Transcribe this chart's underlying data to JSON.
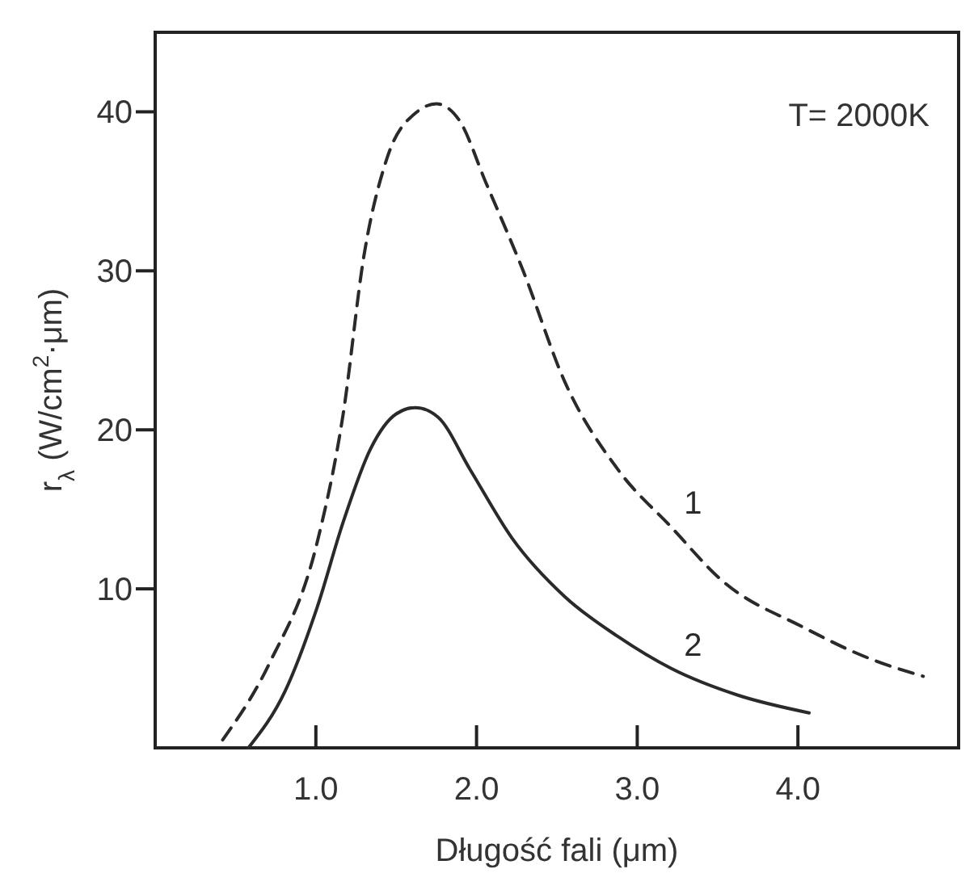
{
  "chart_data": {
    "type": "line",
    "xlabel": "Długość fali (μm)",
    "ylabel": "r$_{λ}$ (W/cm$^{2}$·μm)",
    "xlim": [
      0,
      5
    ],
    "xticks": [
      {
        "value": 1,
        "label": "1.0"
      },
      {
        "value": 2,
        "label": "2.0"
      },
      {
        "value": 3,
        "label": "3.0"
      },
      {
        "value": 4,
        "label": "4.0"
      }
    ],
    "ylim": [
      0,
      45
    ],
    "yticks": [
      10,
      20,
      30,
      40
    ],
    "grid": false,
    "marker": "none",
    "annotations": [
      "T= 2000K"
    ],
    "series": [
      {
        "name": "1",
        "color": "#2a2a2a",
        "line_style": "dashed",
        "x": [
          0.42,
          0.71,
          1.01,
          1.17,
          1.3,
          1.44,
          1.63,
          1.75,
          1.89,
          2.06,
          2.29,
          2.55,
          2.88,
          3.21,
          3.53,
          4.03,
          4.45,
          4.78
        ],
        "values": [
          0.5,
          5.3,
          13,
          21,
          31,
          37,
          40,
          40.5,
          39.5,
          35.5,
          30,
          23,
          17.5,
          13.9,
          10.5,
          7.6,
          5.6,
          4.5
        ]
      },
      {
        "name": "2",
        "color": "#2a2a2a",
        "line_style": "solid",
        "x": [
          0.58,
          0.81,
          1.01,
          1.17,
          1.34,
          1.5,
          1.62,
          1.76,
          1.96,
          2.22,
          2.55,
          2.88,
          3.21,
          3.63,
          4.07
        ],
        "values": [
          0,
          3.6,
          8.9,
          14.2,
          18.8,
          21,
          21.4,
          20.8,
          17.5,
          13.2,
          9.5,
          7,
          5,
          3.3,
          2.2
        ]
      }
    ]
  }
}
